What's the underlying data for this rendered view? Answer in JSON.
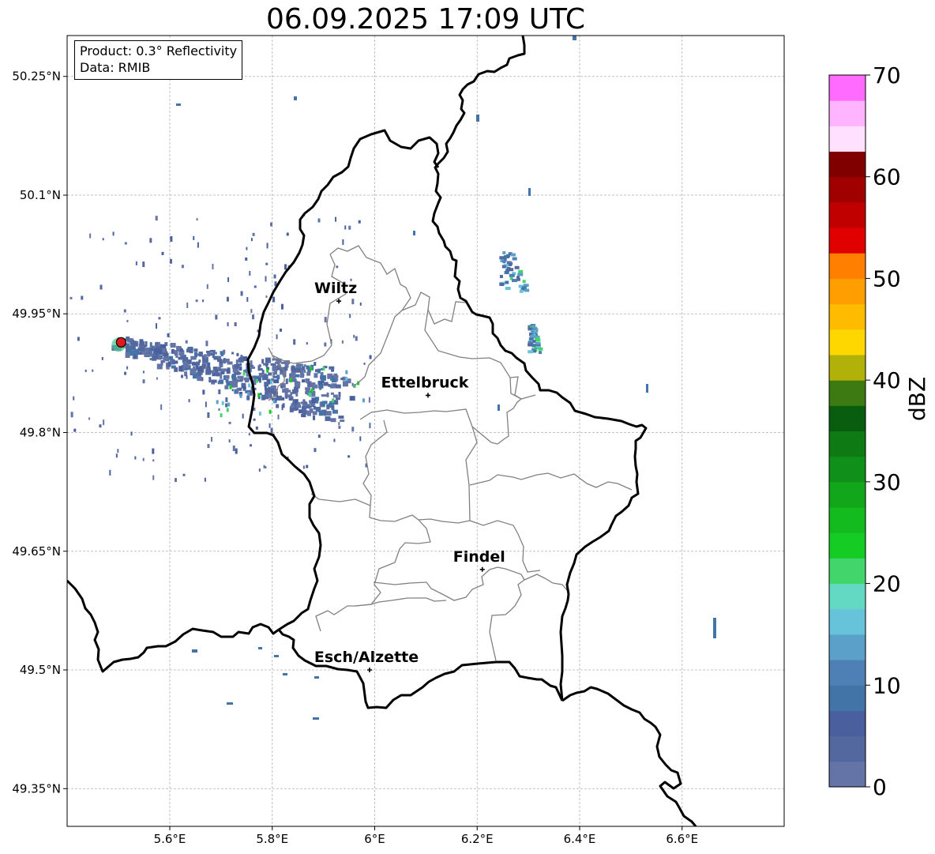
{
  "title": "06.09.2025 17:09 UTC",
  "info": {
    "product": "Product: 0.3° Reflectivity",
    "data": "Data: RMIB"
  },
  "map": {
    "extent": {
      "lon": [
        5.4,
        6.8
      ],
      "lat": [
        49.3,
        50.3
      ]
    },
    "lat_ticks": [
      {
        "value": 50.25,
        "label": "50.25°N"
      },
      {
        "value": 50.1,
        "label": "50.1°N"
      },
      {
        "value": 49.95,
        "label": "49.95°N"
      },
      {
        "value": 49.8,
        "label": "49.8°N"
      },
      {
        "value": 49.65,
        "label": "49.65°N"
      },
      {
        "value": 49.5,
        "label": "49.5°N"
      },
      {
        "value": 49.35,
        "label": "49.35°N"
      }
    ],
    "lon_ticks": [
      {
        "value": 5.6,
        "label": "5.6°E"
      },
      {
        "value": 5.8,
        "label": "5.8°E"
      },
      {
        "value": 6.0,
        "label": "6°E"
      },
      {
        "value": 6.2,
        "label": "6.2°E"
      },
      {
        "value": 6.4,
        "label": "6.4°E"
      },
      {
        "value": 6.6,
        "label": "6.6°E"
      }
    ],
    "gridlines": true,
    "places": [
      {
        "name": "Wiltz",
        "lon": 5.93,
        "lat": 49.966
      },
      {
        "name": "Ettelbruck",
        "lon": 6.104,
        "lat": 49.847
      },
      {
        "name": "Findel",
        "lon": 6.21,
        "lat": 49.627
      },
      {
        "name": "Esch/Alzette",
        "lon": 5.99,
        "lat": 49.5
      }
    ],
    "radar_site": {
      "lon": 5.505,
      "lat": 49.914,
      "color": "#e31a1c"
    }
  },
  "colorbar": {
    "label": "dBZ",
    "min": 0,
    "max": 70,
    "step": 2.5,
    "ticks": [
      {
        "value": 0,
        "label": "0"
      },
      {
        "value": 10,
        "label": "10"
      },
      {
        "value": 20,
        "label": "20"
      },
      {
        "value": 30,
        "label": "30"
      },
      {
        "value": 40,
        "label": "40"
      },
      {
        "value": 50,
        "label": "50"
      },
      {
        "value": 60,
        "label": "60"
      },
      {
        "value": 70,
        "label": "70"
      }
    ],
    "colors": [
      "#6474a6",
      "#5468a0",
      "#4a5f9d",
      "#4374a8",
      "#4f80b5",
      "#5aa0c8",
      "#66c3da",
      "#63d8c3",
      "#41d56b",
      "#14cc24",
      "#13bb1f",
      "#12a61a",
      "#10901a",
      "#0d7a13",
      "#085e0e",
      "#3e7a12",
      "#b1b109",
      "#ffd700",
      "#ffbb00",
      "#ff9e00",
      "#ff7f00",
      "#e00000",
      "#c00000",
      "#a00000",
      "#800000",
      "#ffe0ff",
      "#ffb4ff",
      "#ff6bff",
      "#f03cf0"
    ]
  }
}
